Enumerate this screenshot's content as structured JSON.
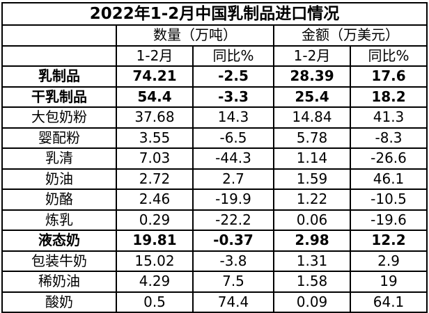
{
  "title": "2022年1-2月中国乳制品进口情况",
  "group_headers": {
    "quantity": "数量（万吨）",
    "amount": "金额（万美元）"
  },
  "sub_headers": [
    "1-2月",
    "同比%",
    "1-2月",
    "同比%"
  ],
  "rows": [
    {
      "name": "乳制品",
      "vals": [
        "74.21",
        "-2.5",
        "28.39",
        "17.6"
      ],
      "bold": true
    },
    {
      "name": "干乳制品",
      "vals": [
        "54.4",
        "-3.3",
        "25.4",
        "18.2"
      ],
      "bold": true
    },
    {
      "name": "大包奶粉",
      "vals": [
        "37.68",
        "14.3",
        "14.84",
        "41.3"
      ],
      "bold": false
    },
    {
      "name": "婴配粉",
      "vals": [
        "3.55",
        "-6.5",
        "5.78",
        "-8.3"
      ],
      "bold": false
    },
    {
      "name": "乳清",
      "vals": [
        "7.03",
        "-44.3",
        "1.14",
        "-26.6"
      ],
      "bold": false
    },
    {
      "name": "奶油",
      "vals": [
        "2.72",
        "2.7",
        "1.59",
        "46.1"
      ],
      "bold": false
    },
    {
      "name": "奶酪",
      "vals": [
        "2.46",
        "-19.9",
        "1.22",
        "-10.5"
      ],
      "bold": false
    },
    {
      "name": "炼乳",
      "vals": [
        "0.29",
        "-22.2",
        "0.06",
        "-19.6"
      ],
      "bold": false
    },
    {
      "name": "液态奶",
      "vals": [
        "19.81",
        "-0.37",
        "2.98",
        "12.2"
      ],
      "bold": true
    },
    {
      "name": "包装牛奶",
      "vals": [
        "15.02",
        "-3.8",
        "1.31",
        "2.9"
      ],
      "bold": false
    },
    {
      "name": "稀奶油",
      "vals": [
        "4.29",
        "7.5",
        "1.58",
        "19"
      ],
      "bold": false
    },
    {
      "name": "酸奶",
      "vals": [
        "0.5",
        "74.4",
        "0.09",
        "64.1"
      ],
      "bold": false
    }
  ]
}
